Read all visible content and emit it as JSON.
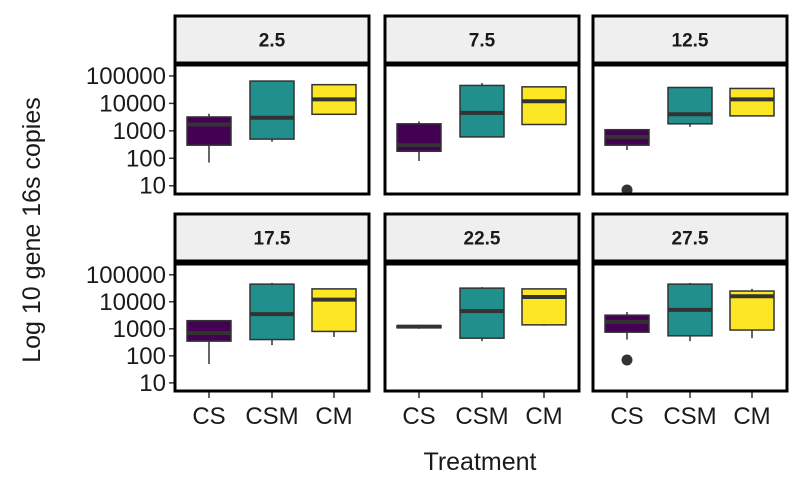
{
  "chart_data": {
    "type": "boxplot",
    "xlabel": "Treatment",
    "ylabel": "Log 10 gene 16s copies",
    "y_scale": "log10",
    "ylim": [
      5,
      250000
    ],
    "y_ticks": [
      10,
      100,
      1000,
      10000,
      100000
    ],
    "y_tick_labels": [
      "10",
      "100",
      "1000",
      "10000",
      "100000"
    ],
    "categories": [
      "CS",
      "CSM",
      "CM"
    ],
    "colors": {
      "CS": "#440154",
      "CSM": "#21908C",
      "CM": "#FDE725"
    },
    "facets": [
      {
        "label": "2.5",
        "boxes": [
          {
            "group": "CS",
            "min": 70,
            "q1": 300,
            "median": 1700,
            "q3": 3200,
            "max": 4200,
            "outliers": []
          },
          {
            "group": "CSM",
            "min": 400,
            "q1": 500,
            "median": 3000,
            "q3": 65000,
            "max": 65000,
            "outliers": []
          },
          {
            "group": "CM",
            "min": 4000,
            "q1": 4000,
            "median": 14000,
            "q3": 48000,
            "max": 48000,
            "outliers": []
          }
        ]
      },
      {
        "label": "7.5",
        "boxes": [
          {
            "group": "CS",
            "min": 80,
            "q1": 180,
            "median": 300,
            "q3": 1800,
            "max": 2200,
            "outliers": []
          },
          {
            "group": "CSM",
            "min": 600,
            "q1": 600,
            "median": 4500,
            "q3": 45000,
            "max": 55000,
            "outliers": []
          },
          {
            "group": "CM",
            "min": 1700,
            "q1": 1700,
            "median": 12000,
            "q3": 40000,
            "max": 40000,
            "outliers": []
          }
        ]
      },
      {
        "label": "12.5",
        "boxes": [
          {
            "group": "CS",
            "min": 200,
            "q1": 300,
            "median": 600,
            "q3": 1100,
            "max": 1100,
            "outliers": [
              7
            ]
          },
          {
            "group": "CSM",
            "min": 1400,
            "q1": 1800,
            "median": 4000,
            "q3": 38000,
            "max": 38000,
            "outliers": []
          },
          {
            "group": "CM",
            "min": 3500,
            "q1": 3500,
            "median": 14000,
            "q3": 35000,
            "max": 35000,
            "outliers": []
          }
        ]
      },
      {
        "label": "17.5",
        "boxes": [
          {
            "group": "CS",
            "min": 50,
            "q1": 350,
            "median": 700,
            "q3": 2000,
            "max": 2000,
            "outliers": []
          },
          {
            "group": "CSM",
            "min": 250,
            "q1": 400,
            "median": 3500,
            "q3": 45000,
            "max": 50000,
            "outliers": []
          },
          {
            "group": "CM",
            "min": 500,
            "q1": 800,
            "median": 12000,
            "q3": 30000,
            "max": 30000,
            "outliers": []
          }
        ]
      },
      {
        "label": "22.5",
        "boxes": [
          {
            "group": "CS",
            "min": 1000,
            "q1": 1100,
            "median": 1200,
            "q3": 1300,
            "max": 1400,
            "outliers": []
          },
          {
            "group": "CSM",
            "min": 350,
            "q1": 450,
            "median": 4500,
            "q3": 32000,
            "max": 35000,
            "outliers": []
          },
          {
            "group": "CM",
            "min": 1300,
            "q1": 1400,
            "median": 15000,
            "q3": 30000,
            "max": 30000,
            "outliers": []
          }
        ]
      },
      {
        "label": "27.5",
        "boxes": [
          {
            "group": "CS",
            "min": 400,
            "q1": 750,
            "median": 1800,
            "q3": 3200,
            "max": 4200,
            "outliers": [
              70
            ]
          },
          {
            "group": "CSM",
            "min": 350,
            "q1": 550,
            "median": 5000,
            "q3": 45000,
            "max": 50000,
            "outliers": []
          },
          {
            "group": "CM",
            "min": 450,
            "q1": 900,
            "median": 16000,
            "q3": 25000,
            "max": 30000,
            "outliers": []
          }
        ]
      }
    ]
  }
}
